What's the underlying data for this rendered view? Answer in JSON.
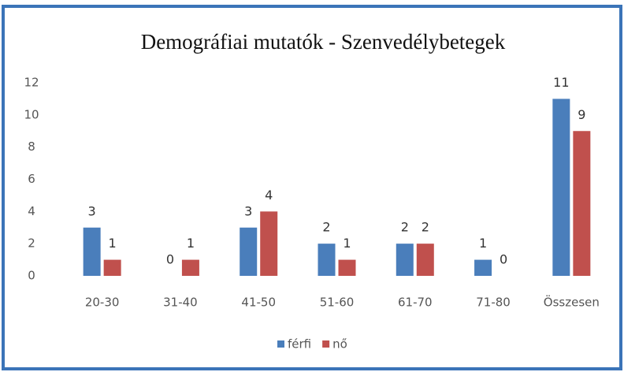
{
  "chart_data": {
    "type": "bar",
    "title": "Demográfiai mutatók - Szenvedélybetegek",
    "categories": [
      "20-30",
      "31-40",
      "41-50",
      "51-60",
      "61-70",
      "71-80",
      "Összesen"
    ],
    "series": [
      {
        "name": "férfi",
        "color": "#4a7ebb",
        "values": [
          3,
          0,
          3,
          2,
          2,
          1,
          11
        ]
      },
      {
        "name": "nő",
        "color": "#c0504d",
        "values": [
          1,
          1,
          4,
          1,
          2,
          0,
          9
        ]
      }
    ],
    "ylim": [
      0,
      12
    ],
    "yticks": [
      0,
      2,
      4,
      6,
      8,
      10,
      12
    ]
  }
}
